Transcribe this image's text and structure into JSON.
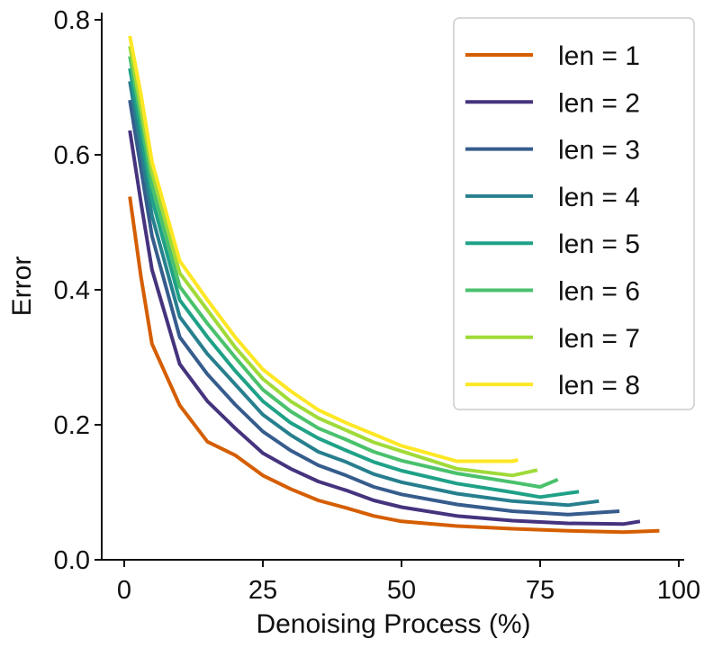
{
  "chart_data": {
    "type": "line",
    "xlabel": "Denoising Process (%)",
    "ylabel": "Error",
    "xlim": [
      -4,
      101
    ],
    "ylim": [
      0,
      0.81
    ],
    "xticks": [
      "0",
      "25",
      "50",
      "75",
      "100"
    ],
    "yticks": [
      "0.0",
      "0.2",
      "0.4",
      "0.6",
      "0.8"
    ],
    "grid": false,
    "legend_position": "top-right",
    "series": [
      {
        "name": "len = 1",
        "color": "#d55e00",
        "x": [
          1,
          3,
          5,
          10,
          15,
          20,
          25,
          30,
          35,
          40,
          45,
          50,
          60,
          70,
          80,
          90,
          96.5
        ],
        "y": [
          0.538,
          0.42,
          0.32,
          0.229,
          0.175,
          0.155,
          0.125,
          0.105,
          0.088,
          0.077,
          0.065,
          0.057,
          0.05,
          0.046,
          0.043,
          0.041,
          0.043
        ]
      },
      {
        "name": "len = 2",
        "color": "#46337e",
        "x": [
          1,
          3,
          5,
          10,
          15,
          20,
          25,
          30,
          35,
          40,
          45,
          50,
          60,
          70,
          80,
          90,
          93
        ],
        "y": [
          0.636,
          0.53,
          0.43,
          0.29,
          0.235,
          0.195,
          0.158,
          0.135,
          0.116,
          0.103,
          0.088,
          0.078,
          0.065,
          0.058,
          0.054,
          0.053,
          0.057
        ]
      },
      {
        "name": "len = 3",
        "color": "#365c8d",
        "x": [
          1,
          3,
          5,
          10,
          15,
          20,
          25,
          30,
          35,
          40,
          45,
          50,
          60,
          70,
          80,
          89.3
        ],
        "y": [
          0.681,
          0.58,
          0.48,
          0.33,
          0.275,
          0.23,
          0.19,
          0.162,
          0.14,
          0.125,
          0.108,
          0.097,
          0.082,
          0.072,
          0.067,
          0.072
        ]
      },
      {
        "name": "len = 4",
        "color": "#277f8e",
        "x": [
          1,
          3,
          5,
          10,
          15,
          20,
          25,
          30,
          35,
          40,
          45,
          50,
          60,
          70,
          80,
          85.6
        ],
        "y": [
          0.709,
          0.61,
          0.51,
          0.36,
          0.305,
          0.26,
          0.215,
          0.185,
          0.16,
          0.145,
          0.127,
          0.115,
          0.098,
          0.087,
          0.081,
          0.087
        ]
      },
      {
        "name": "len = 5",
        "color": "#1fa187",
        "x": [
          1,
          3,
          5,
          10,
          15,
          20,
          25,
          30,
          35,
          40,
          45,
          50,
          60,
          70,
          75,
          82
        ],
        "y": [
          0.728,
          0.635,
          0.535,
          0.385,
          0.33,
          0.28,
          0.235,
          0.203,
          0.18,
          0.162,
          0.145,
          0.132,
          0.113,
          0.1,
          0.093,
          0.101
        ]
      },
      {
        "name": "len = 6",
        "color": "#4ac16d",
        "x": [
          1,
          3,
          5,
          10,
          15,
          20,
          25,
          30,
          35,
          40,
          45,
          50,
          60,
          70,
          75,
          78.2
        ],
        "y": [
          0.746,
          0.655,
          0.555,
          0.405,
          0.35,
          0.3,
          0.252,
          0.22,
          0.195,
          0.178,
          0.16,
          0.147,
          0.128,
          0.115,
          0.108,
          0.119
        ]
      },
      {
        "name": "len = 7",
        "color": "#a0da39",
        "x": [
          1,
          3,
          5,
          10,
          15,
          20,
          25,
          30,
          35,
          40,
          45,
          50,
          60,
          70,
          74.5
        ],
        "y": [
          0.761,
          0.67,
          0.575,
          0.425,
          0.37,
          0.315,
          0.268,
          0.235,
          0.21,
          0.192,
          0.174,
          0.161,
          0.135,
          0.125,
          0.133
        ]
      },
      {
        "name": "len = 8",
        "color": "#fde725",
        "x": [
          1,
          3,
          5,
          10,
          15,
          20,
          25,
          30,
          35,
          40,
          45,
          50,
          60,
          70,
          71
        ],
        "y": [
          0.776,
          0.69,
          0.59,
          0.443,
          0.385,
          0.33,
          0.282,
          0.25,
          0.222,
          0.203,
          0.186,
          0.169,
          0.146,
          0.146,
          0.148
        ]
      }
    ]
  }
}
